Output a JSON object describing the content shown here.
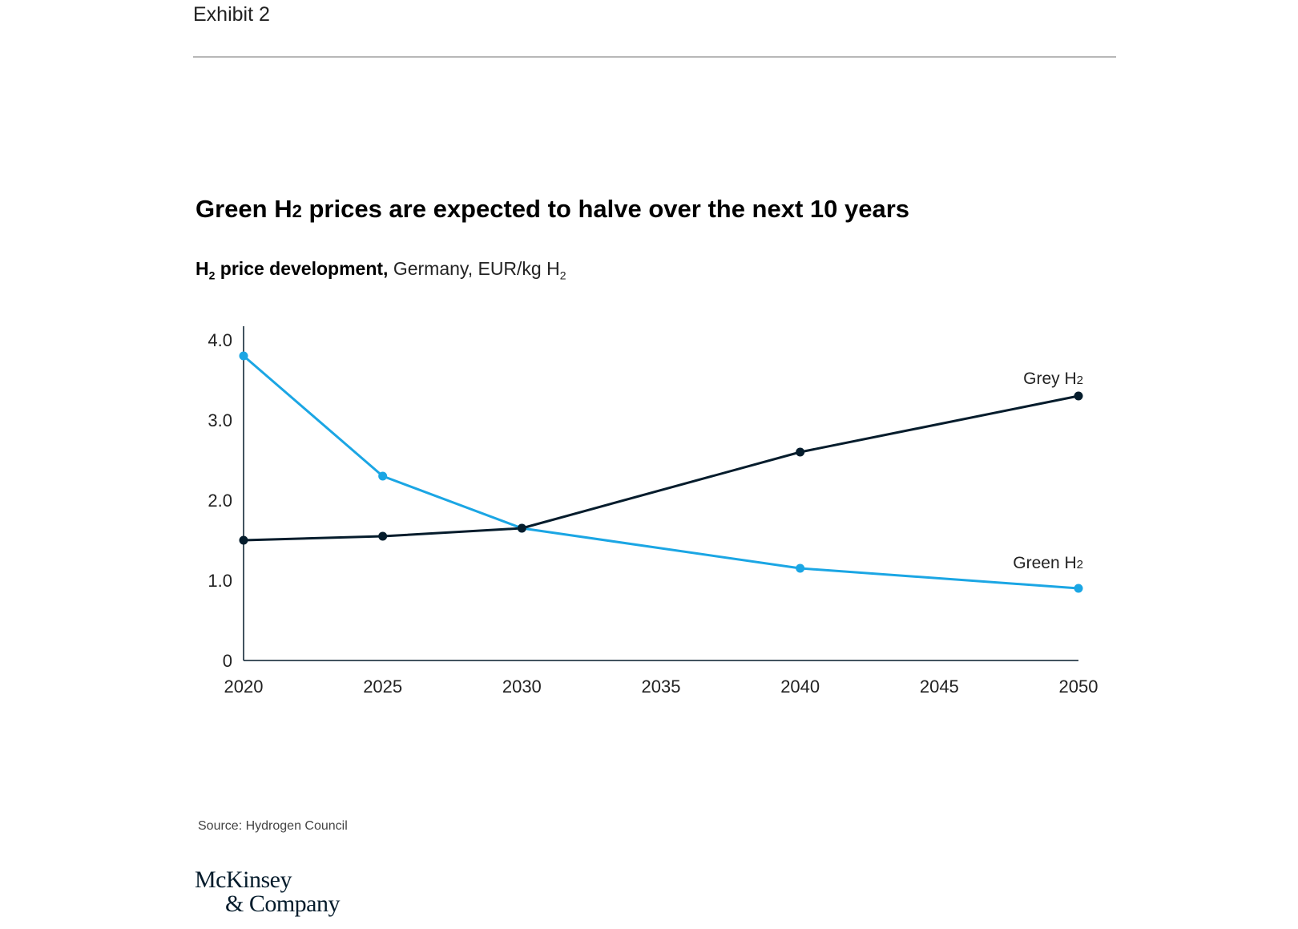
{
  "header": {
    "exhibit_label": "Exhibit 2"
  },
  "chart_data": {
    "type": "line",
    "title_main": "Green H",
    "title_sub": "2",
    "title_rest": " prices are expected to halve over the next 10 years",
    "subtitle_bold_a": "H",
    "subtitle_bold_sub": "2",
    "subtitle_bold_b": " price development,",
    "subtitle_normal": " Germany, EUR/kg H",
    "subtitle_normal_sub": "2",
    "x_ticks": [
      "2020",
      "2025",
      "2030",
      "2035",
      "2040",
      "2045",
      "2050"
    ],
    "y_ticks": [
      "0",
      "1.0",
      "2.0",
      "3.0",
      "4.0"
    ],
    "xlim": [
      2020,
      2050
    ],
    "ylim": [
      0,
      4.0
    ],
    "grid": false,
    "series": [
      {
        "name": "Green H",
        "name_sub": "2",
        "color": "#1ba6e4",
        "x": [
          2020,
          2025,
          2030,
          2040,
          2050
        ],
        "values": [
          3.8,
          2.3,
          1.65,
          1.15,
          0.9
        ]
      },
      {
        "name": "Grey H",
        "name_sub": "2",
        "color": "#051c2c",
        "x": [
          2020,
          2025,
          2030,
          2040,
          2050
        ],
        "values": [
          1.5,
          1.55,
          1.65,
          2.6,
          3.3
        ]
      }
    ]
  },
  "footer": {
    "source": "Source: Hydrogen Council",
    "logo_line1": "McKinsey",
    "logo_line2": "& Company"
  }
}
